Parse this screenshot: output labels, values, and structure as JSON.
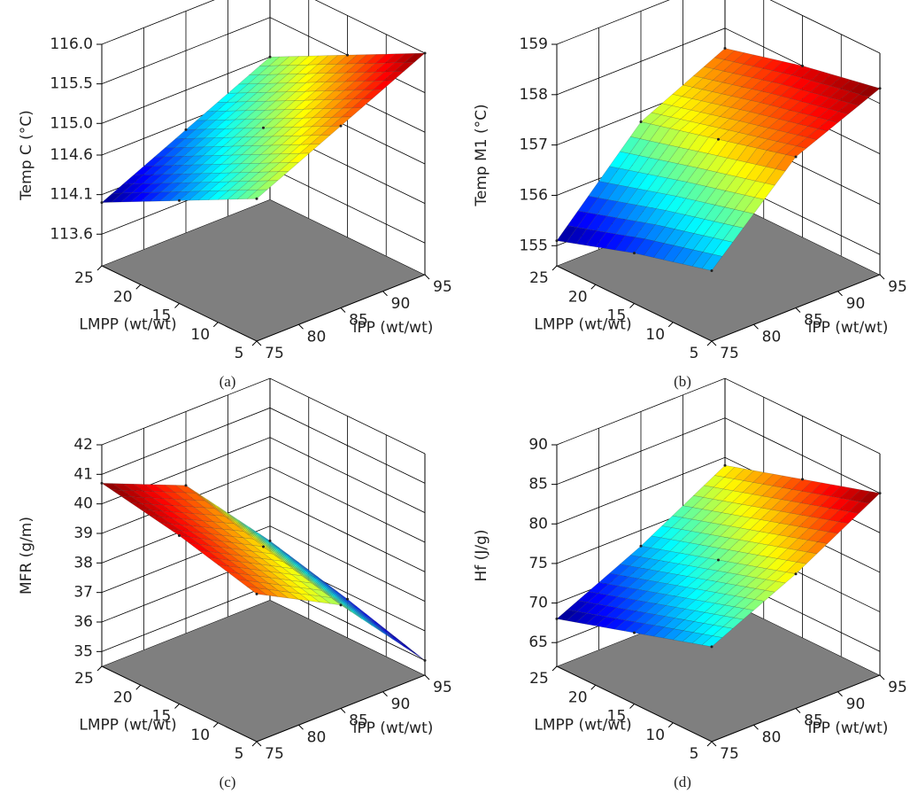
{
  "chart_data": [
    {
      "type": "surface",
      "caption": "(a)",
      "zlabel": "Temp C (°C)",
      "xlabel": "iPP (wt/wt)",
      "ylabel": "LMPP (wt/wt)",
      "xlim": [
        75,
        95
      ],
      "xticks": [
        75,
        80,
        85,
        90,
        95
      ],
      "ylim": [
        5,
        25
      ],
      "yticks": [
        5,
        10,
        15,
        20,
        25
      ],
      "zlim": [
        113.2,
        116.0
      ],
      "zticks": [
        113.6,
        114.1,
        114.6,
        {
          "value": 115.0,
          "label": "115.0"
        },
        115.5,
        {
          "value": 116.0,
          "label": "116.0"
        }
      ],
      "x": [
        75,
        85,
        95
      ],
      "y": [
        5,
        15,
        25
      ],
      "z": [
        [
          115.0,
          115.5,
          116.0
        ],
        [
          114.5,
          115.0,
          115.5
        ],
        [
          114.0,
          114.5,
          115.0
        ]
      ]
    },
    {
      "type": "surface",
      "caption": "(b)",
      "zlabel": "Temp M1 (°C)",
      "xlabel": "iPP (wt/wt)",
      "ylabel": "LMPP (wt/wt)",
      "xlim": [
        75,
        95
      ],
      "xticks": [
        75,
        80,
        85,
        90,
        95
      ],
      "ylim": [
        5,
        25
      ],
      "yticks": [
        5,
        10,
        15,
        20,
        25
      ],
      "zlim": [
        154.6,
        159
      ],
      "zticks": [
        155,
        156,
        157,
        158,
        159
      ],
      "x": [
        75,
        85,
        95
      ],
      "y": [
        5,
        15,
        25
      ],
      "z": [
        [
          156.0,
          157.6,
          158.3
        ],
        [
          155.6,
          157.2,
          158.0
        ],
        [
          155.1,
          156.8,
          157.6
        ]
      ]
    },
    {
      "type": "surface",
      "caption": "(c)",
      "zlabel": "MFR (g/m)",
      "xlabel": "iPP (wt/wt)",
      "ylabel": "LMPP (wt/wt)",
      "xlim": [
        75,
        95
      ],
      "xticks": [
        75,
        80,
        85,
        90,
        95
      ],
      "ylim": [
        5,
        25
      ],
      "yticks": [
        5,
        10,
        15,
        20,
        25
      ],
      "zlim": [
        34.5,
        42
      ],
      "zticks": [
        35,
        36,
        37,
        38,
        39,
        40,
        41,
        42
      ],
      "x": [
        75,
        85,
        95
      ],
      "y": [
        5,
        15,
        25
      ],
      "z": [
        [
          39.5,
          38.0,
          35.0
        ],
        [
          40.2,
          38.7,
          35.8
        ],
        [
          40.7,
          39.5,
          36.5
        ]
      ]
    },
    {
      "type": "surface",
      "caption": "(d)",
      "zlabel": "Hf (J/g)",
      "xlabel": "iPP (wt/wt)",
      "ylabel": "LMPP (wt/wt)",
      "xlim": [
        75,
        95
      ],
      "xticks": [
        75,
        80,
        85,
        90,
        95
      ],
      "ylim": [
        5,
        25
      ],
      "yticks": [
        5,
        10,
        15,
        20,
        25
      ],
      "zlim": [
        62,
        90
      ],
      "zticks": [
        65,
        70,
        75,
        80,
        85,
        90
      ],
      "x": [
        75,
        85,
        95
      ],
      "y": [
        5,
        15,
        25
      ],
      "z": [
        [
          74,
          79,
          85
        ],
        [
          71,
          76,
          82
        ],
        [
          68,
          73,
          79
        ]
      ]
    }
  ]
}
